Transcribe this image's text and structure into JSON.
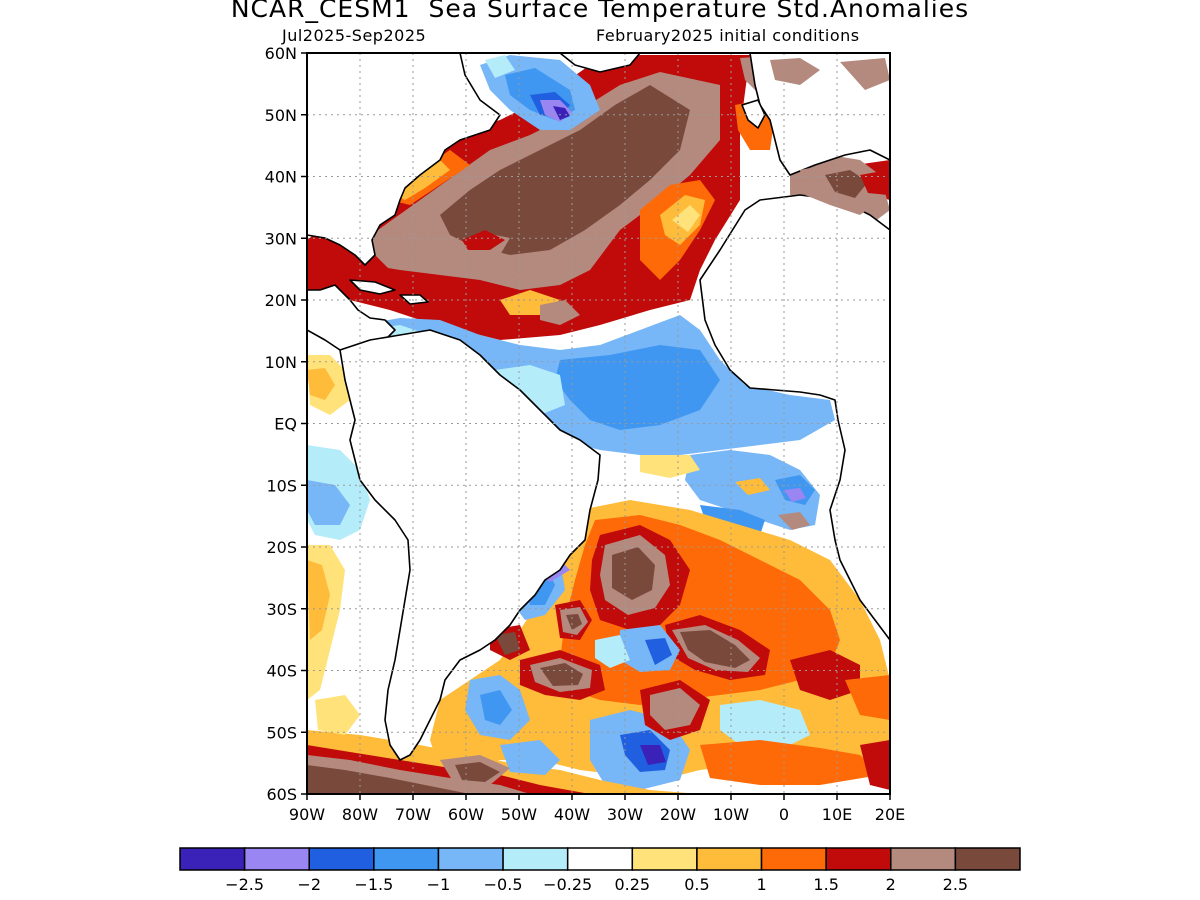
{
  "title": "NCAR_CESM1  Sea Surface Temperature Std.Anomalies",
  "period": "Jul2025-Sep2025",
  "initial_conditions": "February2025 initial conditions",
  "map": {
    "lat_labels": [
      "60N",
      "50N",
      "40N",
      "30N",
      "20N",
      "10N",
      "EQ",
      "10S",
      "20S",
      "30S",
      "40S",
      "50S",
      "60S"
    ],
    "lon_labels": [
      "90W",
      "80W",
      "70W",
      "60W",
      "50W",
      "40W",
      "30W",
      "20W",
      "10W",
      "0",
      "10E",
      "20E"
    ],
    "lat_range": [
      -60,
      60
    ],
    "lon_range": [
      -90,
      20
    ],
    "grid": true
  },
  "legend": {
    "colors": [
      "#3a21b8",
      "#9a86f2",
      "#1f5fe0",
      "#3f97f2",
      "#77b6f7",
      "#b4ecfa",
      "#ffffff",
      "#ffe27a",
      "#ffbb3a",
      "#ff6a08",
      "#c10a0a",
      "#b48a7e",
      "#79493c"
    ],
    "labels": [
      "-2.5",
      "-2",
      "-1.5",
      "-1",
      "-0.5",
      "-0.25",
      "0.25",
      "0.5",
      "1",
      "1.5",
      "2",
      "2.5"
    ]
  }
}
